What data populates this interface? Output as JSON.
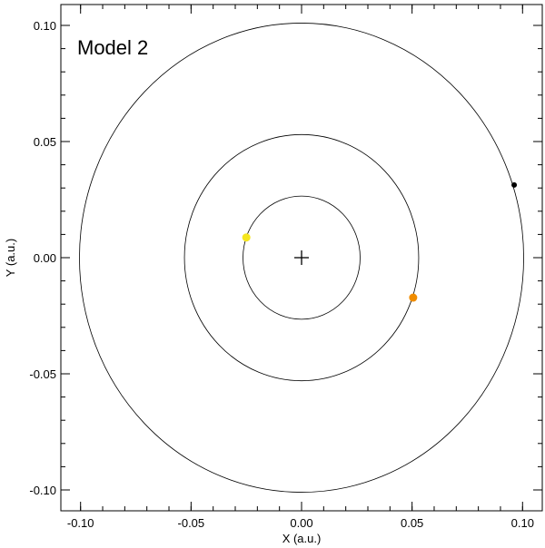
{
  "chart_data": {
    "type": "scatter",
    "annotation": "Model 2",
    "xlabel": "X (a.u.)",
    "ylabel": "Y (a.u.)",
    "xlim": [
      -0.11,
      0.11
    ],
    "ylim": [
      -0.11,
      0.11
    ],
    "x_ticks": [
      -0.1,
      -0.05,
      0.0,
      0.05,
      0.1
    ],
    "x_tick_labels": [
      "-0.10",
      "-0.05",
      "0.00",
      "0.05",
      "0.10"
    ],
    "y_ticks": [
      -0.1,
      -0.05,
      0.0,
      0.05,
      0.1
    ],
    "y_tick_labels": [
      "-0.10",
      "-0.05",
      "0.00",
      "0.05",
      "0.10"
    ],
    "x_minor_step": 0.01,
    "y_minor_step": 0.01,
    "grid": false,
    "center_marker": {
      "x": 0.0,
      "y": 0.0,
      "symbol": "plus",
      "color": "#000000"
    },
    "orbits": [
      {
        "rx": 0.0265,
        "ry": 0.0265,
        "color": "#000000"
      },
      {
        "rx": 0.053,
        "ry": 0.053,
        "color": "#000000"
      },
      {
        "rx": 0.1005,
        "ry": 0.101,
        "color": "#000000"
      }
    ],
    "points": [
      {
        "x": -0.025,
        "y": 0.0087,
        "color": "#f5e61e",
        "size": "large"
      },
      {
        "x": 0.0505,
        "y": -0.0172,
        "color": "#f08c00",
        "size": "large"
      },
      {
        "x": 0.0962,
        "y": 0.0313,
        "color": "#000000",
        "size": "small"
      }
    ]
  }
}
